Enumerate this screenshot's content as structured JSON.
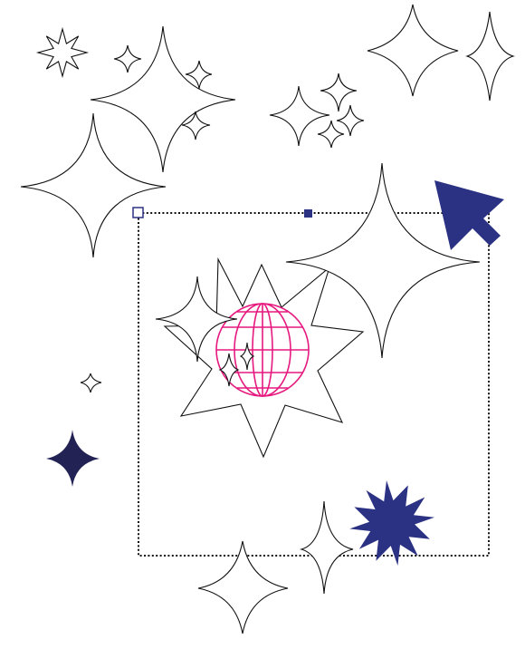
{
  "canvas": {
    "background": "#ffffff",
    "outline_color": "#111111",
    "accent_navy": "#2b3183",
    "accent_dark_navy": "#222255",
    "globe_color": "#e6197f"
  },
  "selection": {
    "style": "dotted",
    "handle_hollow_icon": "square-hollow-icon",
    "handle_filled_icon": "square-filled-icon"
  },
  "icons": {
    "cursor": "arrow-cursor-icon",
    "globe": "wireframe-globe-icon",
    "burst": "starburst-icon",
    "sparkle": "sparkle-star-icon"
  }
}
